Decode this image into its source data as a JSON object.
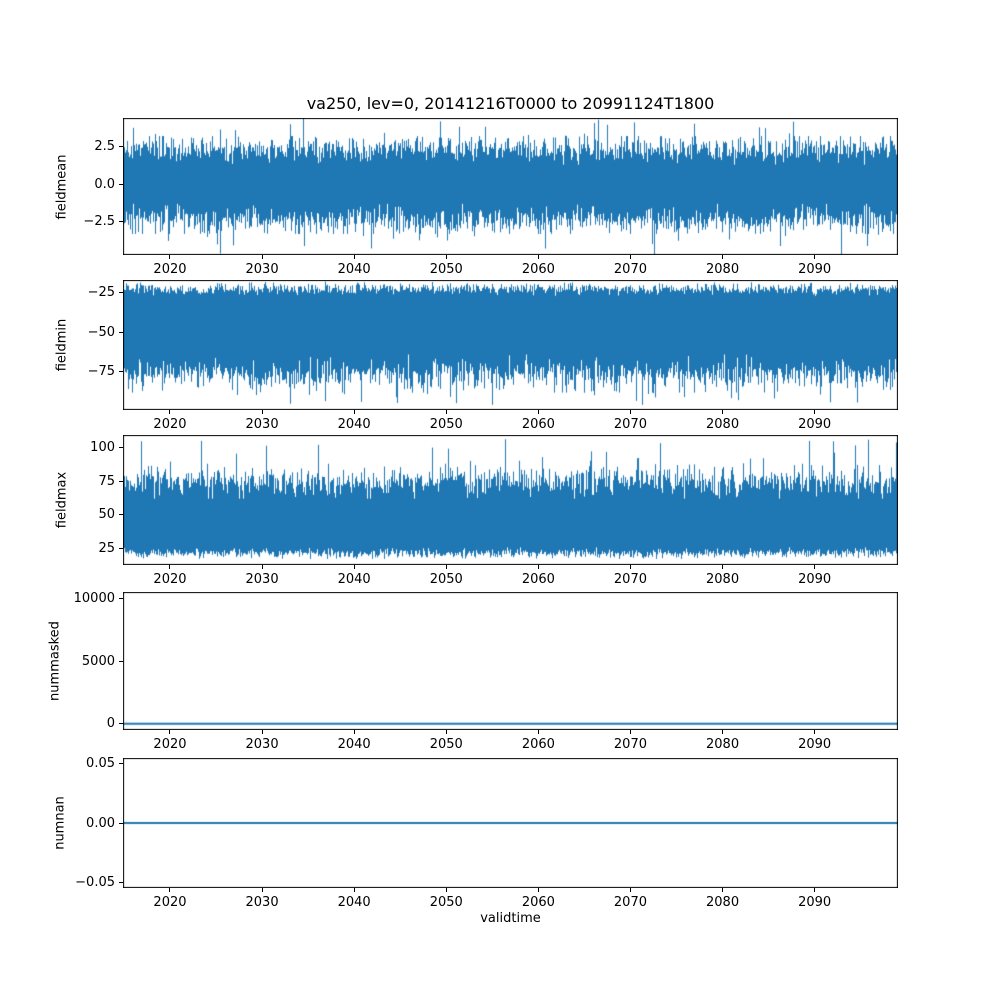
{
  "figure": {
    "title": "va250, lev=0, 20141216T0000 to 20991124T1800",
    "xlabel": "validtime",
    "background": "#ffffff",
    "line_color": "#1f77b4",
    "axis_color": "#000000"
  },
  "chart_data": {
    "type": "line",
    "title": "va250, lev=0, 20141216T0000 to 20991124T1800",
    "xlabel": "validtime",
    "x": {
      "lim": [
        2014.9,
        2099.05
      ],
      "ticks": [
        2020,
        2030,
        2040,
        2050,
        2060,
        2070,
        2080,
        2090
      ],
      "tick_labels": [
        "2020",
        "2030",
        "2040",
        "2050",
        "2060",
        "2070",
        "2080",
        "2090"
      ]
    },
    "legend": "none",
    "grid": false,
    "panels": [
      {
        "name": "fieldmean",
        "ylabel": "fieldmean",
        "ylim": [
          -4.7,
          4.4
        ],
        "yticks": [
          2.5,
          0.0,
          -2.5
        ],
        "ytick_labels": [
          "2.5",
          "0.0",
          "−2.5"
        ],
        "series_type": "dense-noise",
        "summary": {
          "approx_mean": 0,
          "approx_min": -4.6,
          "approx_max": 4.3,
          "core_band": [
            -2.5,
            2.5
          ]
        },
        "envelope": {
          "high": {
            "base": 2.35,
            "sd": 0.45,
            "clip": [
              1.3,
              3.2
            ],
            "spike_prob": 0.03,
            "spike_range": [
              3.2,
              4.35
            ]
          },
          "low": {
            "base": -2.45,
            "sd": 0.5,
            "clip": [
              -3.3,
              -1.3
            ],
            "spike_prob": 0.03,
            "spike_range": [
              -4.65,
              -3.3
            ]
          }
        }
      },
      {
        "name": "fieldmin",
        "ylabel": "fieldmin",
        "ylim": [
          -99,
          -17
        ],
        "yticks": [
          -25,
          -50,
          -75
        ],
        "ytick_labels": [
          "−25",
          "−50",
          "−75"
        ],
        "series_type": "dense-noise",
        "summary": {
          "approx_mean": -50,
          "approx_min": -96,
          "approx_max": -18,
          "core_band": [
            -80,
            -23
          ]
        },
        "envelope": {
          "high": {
            "base": -22.5,
            "sd": 1.8,
            "clip": [
              -27,
              -18
            ],
            "spike_prob": 0.0,
            "spike_range": [
              -18,
              -18
            ]
          },
          "low": {
            "base": -77,
            "sd": 5,
            "clip": [
              -88,
              -64
            ],
            "spike_prob": 0.03,
            "spike_range": [
              -96,
              -88
            ]
          }
        }
      },
      {
        "name": "fieldmax",
        "ylabel": "fieldmax",
        "ylim": [
          13,
          109
        ],
        "yticks": [
          100,
          75,
          50,
          25
        ],
        "ytick_labels": [
          "100",
          "75",
          "50",
          "25"
        ],
        "series_type": "dense-noise",
        "summary": {
          "approx_mean": 50,
          "approx_min": 16,
          "approx_max": 105,
          "core_band": [
            21,
            80
          ]
        },
        "envelope": {
          "high": {
            "base": 75,
            "sd": 6,
            "clip": [
              62,
              90
            ],
            "spike_prob": 0.035,
            "spike_range": [
              90,
              106
            ]
          },
          "low": {
            "base": 21.5,
            "sd": 1.8,
            "clip": [
              17.5,
              26
            ],
            "spike_prob": 0.0,
            "spike_range": [
              17.5,
              17.5
            ]
          }
        }
      },
      {
        "name": "nummasked",
        "ylabel": "nummasked",
        "ylim": [
          -500,
          10500
        ],
        "yticks": [
          10000,
          5000,
          0
        ],
        "ytick_labels": [
          "10000",
          "5000",
          "0"
        ],
        "series_type": "constant",
        "value": 0,
        "summary": {
          "constant_value": 0
        }
      },
      {
        "name": "numnan",
        "ylabel": "numnan",
        "ylim": [
          -0.055,
          0.055
        ],
        "yticks": [
          0.05,
          0.0,
          -0.05
        ],
        "ytick_labels": [
          "0.05",
          "0.00",
          "−0.05"
        ],
        "series_type": "constant",
        "value": 0,
        "summary": {
          "constant_value": 0
        }
      }
    ]
  }
}
